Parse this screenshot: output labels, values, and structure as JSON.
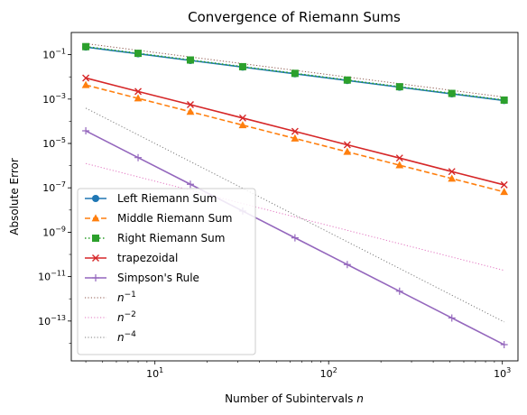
{
  "chart_data": {
    "type": "line",
    "title": "Convergence of Riemann Sums",
    "xlabel": "Number of Subintervals",
    "xlabel_var": "n",
    "ylabel": "Absolute Error",
    "xscale": "log",
    "yscale": "log",
    "xlim": [
      3.3,
      1230
    ],
    "ylim": [
      1.6e-15,
      1.0
    ],
    "grid": false,
    "legend_placement": "lower-left",
    "x_ticks": [
      {
        "value": 10,
        "base": "10",
        "exp": "1"
      },
      {
        "value": 100,
        "base": "10",
        "exp": "2"
      },
      {
        "value": 1000,
        "base": "10",
        "exp": "3"
      }
    ],
    "y_ticks": [
      {
        "value": 0.1,
        "base": "10",
        "exp": "−1"
      },
      {
        "value": 0.001,
        "base": "10",
        "exp": "−3"
      },
      {
        "value": 1e-05,
        "base": "10",
        "exp": "−5"
      },
      {
        "value": 1e-07,
        "base": "10",
        "exp": "−7"
      },
      {
        "value": 1e-09,
        "base": "10",
        "exp": "−9"
      },
      {
        "value": 1e-11,
        "base": "10",
        "exp": "−11"
      },
      {
        "value": 1e-13,
        "base": "10",
        "exp": "−13"
      }
    ],
    "x": [
      4,
      8,
      16,
      32,
      64,
      128,
      256,
      512,
      1024
    ],
    "series": [
      {
        "name": "Left Riemann Sum",
        "color": "#1f77b4",
        "dash": "solid",
        "marker": "circle",
        "values": [
          0.22,
          0.11,
          0.055,
          0.0275,
          0.01375,
          0.006875,
          0.0034375,
          0.00171875,
          0.000859375
        ]
      },
      {
        "name": "Middle Riemann Sum",
        "color": "#ff7f0e",
        "dash": "dashed",
        "marker": "triangle",
        "values": [
          0.0043,
          0.001075,
          0.000269,
          6.7e-05,
          1.68e-05,
          4.2e-06,
          1.05e-06,
          2.62e-07,
          6.56e-08
        ]
      },
      {
        "name": "Right Riemann Sum",
        "color": "#2ca02c",
        "dash": "dotted",
        "marker": "square",
        "values": [
          0.23,
          0.115,
          0.0575,
          0.02875,
          0.014375,
          0.0071875,
          0.00359375,
          0.001796875,
          0.0008984375
        ]
      },
      {
        "name": "trapezoidal",
        "color": "#d62728",
        "dash": "solid",
        "marker": "x",
        "values": [
          0.0089,
          0.0022,
          0.00056,
          0.00014,
          3.5e-05,
          8.7e-06,
          2.2e-06,
          5.4e-07,
          1.36e-07
        ]
      },
      {
        "name": "Simpson's Rule",
        "color": "#9467bd",
        "dash": "solid",
        "marker": "plus",
        "values": [
          3.7e-05,
          2.3e-06,
          1.45e-07,
          9e-09,
          5.6e-10,
          3.5e-11,
          2.2e-12,
          1.37e-13,
          8.6e-15
        ]
      }
    ],
    "reference_lines": [
      {
        "name": "n",
        "exp": "−1",
        "color": "#8c564b",
        "dash": "dotted",
        "power": -1,
        "coef": 1.26
      },
      {
        "name": "n",
        "exp": "−2",
        "color": "#e377c2",
        "dash": "dotted",
        "power": -2,
        "coef": 2e-05
      },
      {
        "name": "n",
        "exp": "−4",
        "color": "#7f7f7f",
        "dash": "dotted",
        "power": -4,
        "coef": 0.1
      }
    ],
    "reference_x_range": [
      4,
      1024
    ]
  }
}
